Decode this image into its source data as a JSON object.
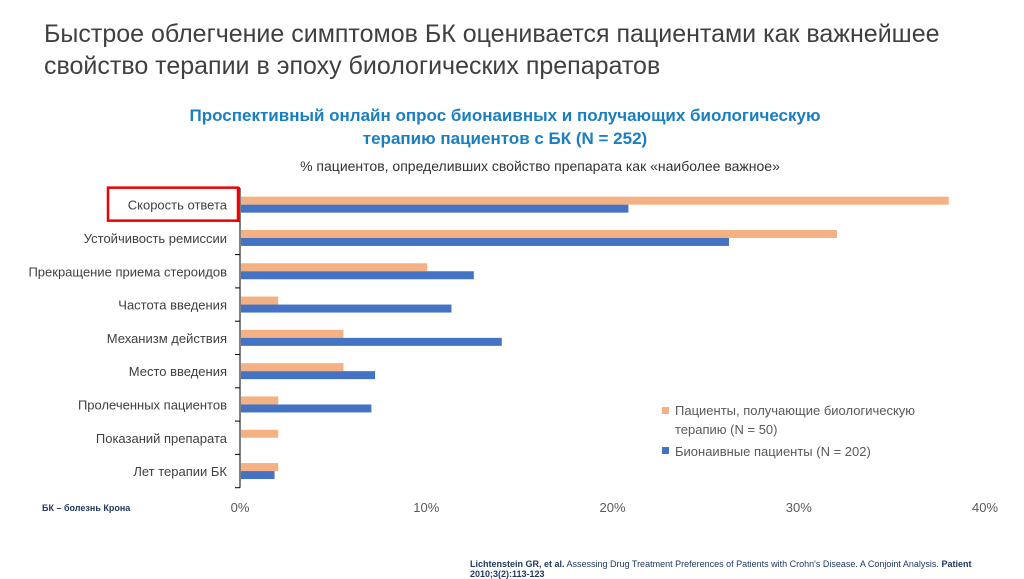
{
  "title": "Быстрое облегчение симптомов БК оценивается пациентами как важнейшее свойство терапии в эпоху биологических препаратов",
  "subtitle_line1": "Проспективный онлайн опрос бионаивных и получающих биологическую",
  "subtitle_line2": "терапию пациентов с БК (N = 252)",
  "footnote": "БК – болезнь Крона",
  "reference": {
    "authors": "Lichtenstein GR, et al.",
    "text": " Assessing Drug Treatment Preferences of Patients with Crohn's Disease. A Conjoint Analysis. ",
    "journal": "Patient 2010;3(2):113-123"
  },
  "chart_data": {
    "type": "bar",
    "orientation": "horizontal",
    "title": "% пациентов, определивших свойство препарата как «наиболее важное»",
    "categories": [
      "Скорость ответа",
      "Устойчивость ремиссии",
      "Прекращение приема стероидов",
      "Частота введения",
      "Механизм действия",
      "Место введения",
      "Пролеченных пациентов",
      "Показаний препарата",
      "Лет терапии БК"
    ],
    "highlighted_category": "Скорость ответа",
    "series": [
      {
        "name": "Пациенты, получающие биологическую терапию (N = 50)",
        "legend_line1": "Пациенты, получающие биологическую",
        "legend_line2": "терапию (N = 50)",
        "color": "#f4b183",
        "values": [
          38,
          32,
          10,
          2,
          5.5,
          5.5,
          2,
          2,
          2
        ]
      },
      {
        "name": "Бионаивные пациенты (N = 202)",
        "color": "#4472c4",
        "values": [
          20.8,
          26.2,
          12.5,
          11.3,
          14,
          7.2,
          7,
          0,
          1.8
        ]
      }
    ],
    "xlim": [
      0,
      40
    ],
    "xticks": [
      0,
      10,
      20,
      30,
      40
    ],
    "xtick_labels": [
      "0%",
      "10%",
      "20%",
      "30%",
      "40%"
    ],
    "legend_position": "bottom-right"
  }
}
